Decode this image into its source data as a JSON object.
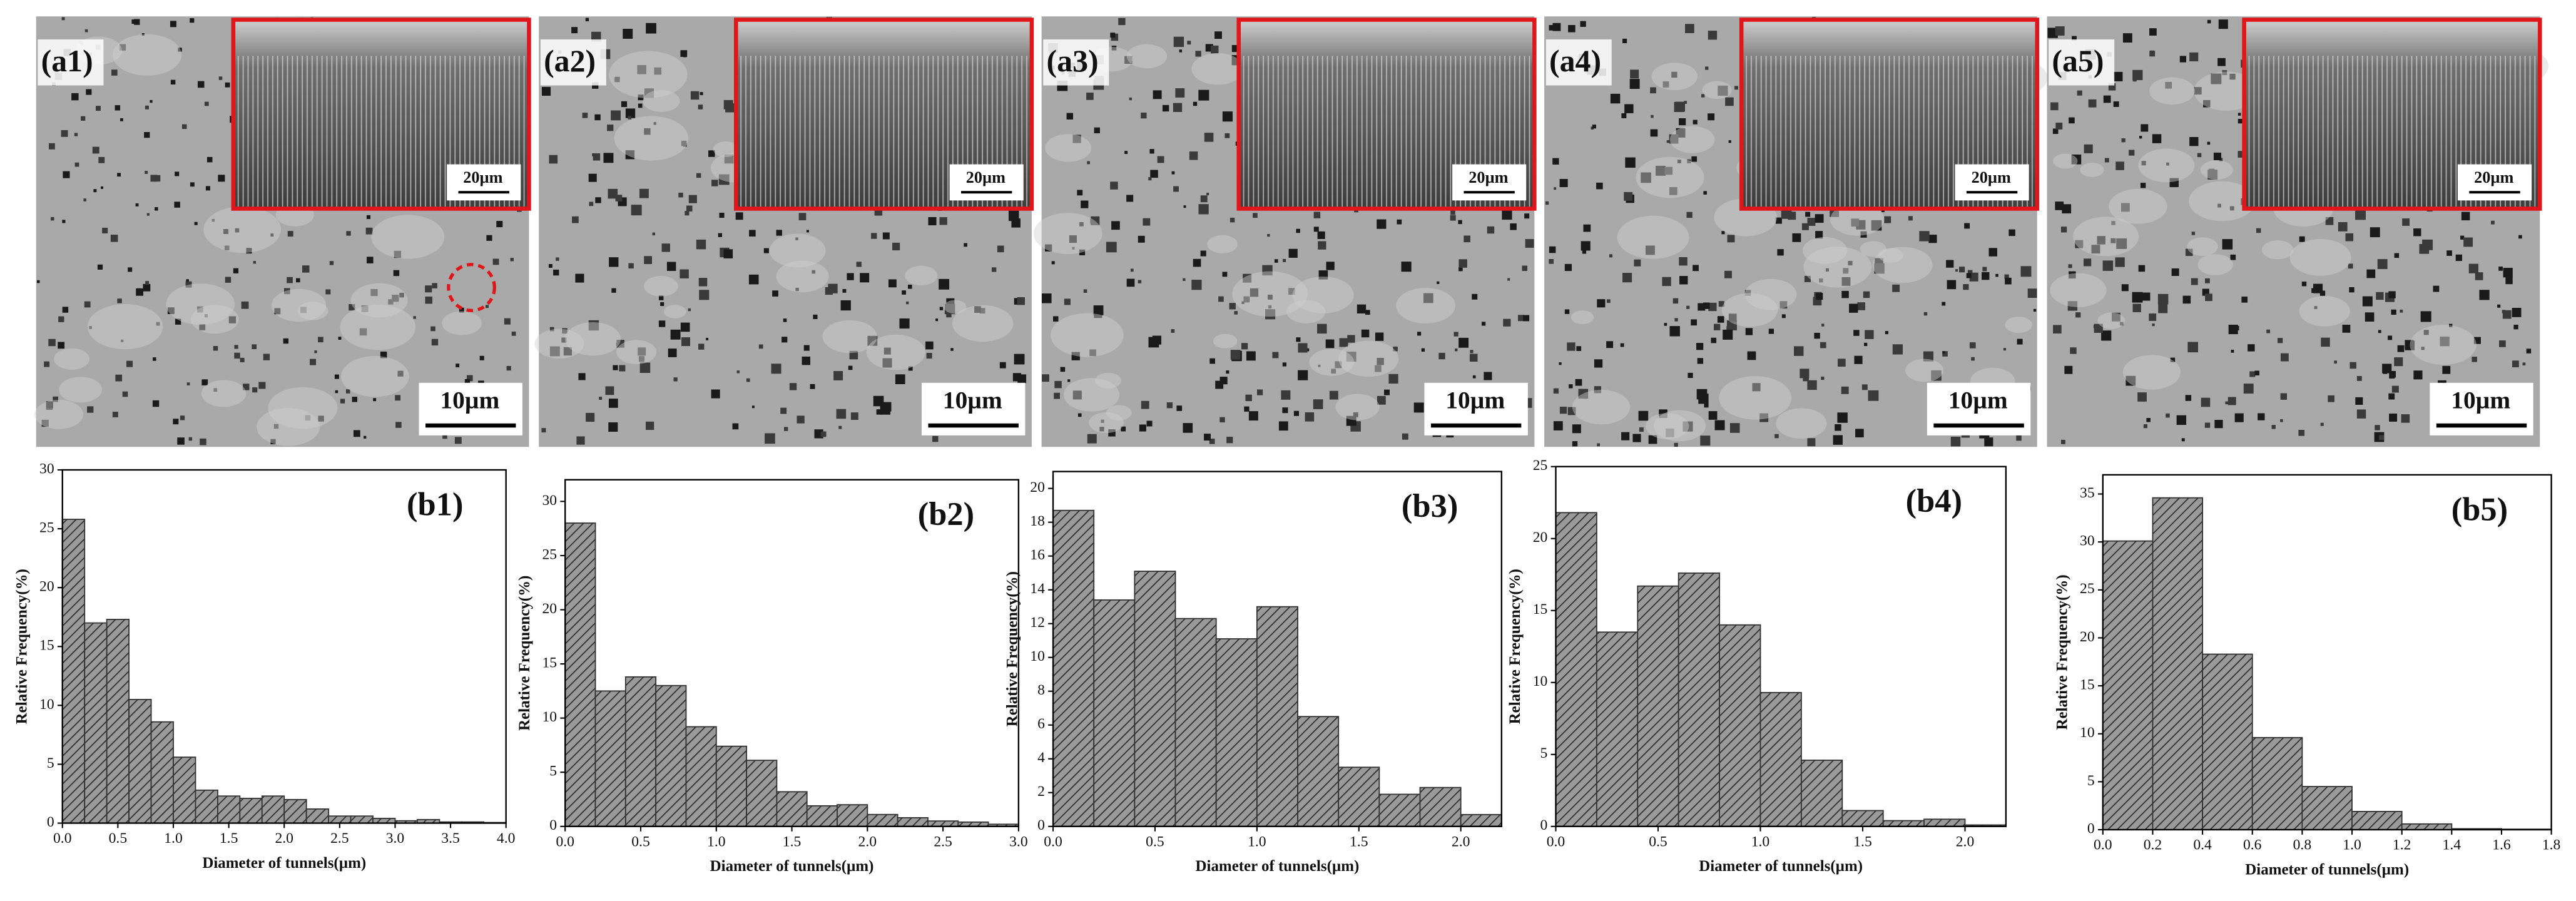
{
  "images": [
    {
      "label": "(a1)",
      "scale_bar": "10µm",
      "inset_scale_bar": "20µm"
    },
    {
      "label": "(a2)",
      "scale_bar": "10µm",
      "inset_scale_bar": "20µm"
    },
    {
      "label": "(a3)",
      "scale_bar": "10µm",
      "inset_scale_bar": "20µm"
    },
    {
      "label": "(a4)",
      "scale_bar": "10µm",
      "inset_scale_bar": "20µm"
    },
    {
      "label": "(a5)",
      "scale_bar": "10µm",
      "inset_scale_bar": "20µm"
    }
  ],
  "chart_data": [
    {
      "type": "histogram",
      "title": "(b1)",
      "xlabel": "Diameter of tunnels(µm)",
      "ylabel": "Relative Frequency(%)",
      "color": "#8c8c8c",
      "bins": [
        0,
        0.2,
        0.4,
        0.6,
        0.8,
        1.0,
        1.2,
        1.4,
        1.6,
        1.8,
        2.0,
        2.2,
        2.4,
        2.6,
        2.8,
        3.0,
        3.2,
        3.4,
        3.6,
        3.8,
        4.0
      ],
      "values": [
        25.8,
        17,
        17.3,
        10.5,
        8.6,
        5.6,
        2.8,
        2.3,
        2.1,
        2.3,
        2.0,
        1.2,
        0.6,
        0.6,
        0.4,
        0.2,
        0.3,
        0.1,
        0.1,
        0.05
      ],
      "xlim": [
        0,
        4.0
      ],
      "ylim": [
        0,
        30
      ],
      "xticks": [
        {
          "value": 0,
          "label": "0.0"
        },
        0.5,
        {
          "value": 1,
          "label": "1.0"
        },
        1.5,
        {
          "value": 2,
          "label": "2.0"
        },
        2.5,
        {
          "value": 3,
          "label": "3.0"
        },
        3.5,
        {
          "value": 4,
          "label": "4.0"
        }
      ],
      "yticks": [
        0,
        5,
        10,
        15,
        20,
        25,
        30
      ]
    },
    {
      "type": "histogram",
      "title": "(b2)",
      "xlabel": "Diameter of tunnels(µm)",
      "ylabel": "Relative Frequency(%)",
      "color": "#8c8c8c",
      "bins": [
        0,
        0.2,
        0.4,
        0.6,
        0.8,
        1.0,
        1.2,
        1.4,
        1.6,
        1.8,
        2.0,
        2.2,
        2.4,
        2.6,
        2.8,
        3.0
      ],
      "values": [
        28,
        12.5,
        13.8,
        13,
        9.2,
        7.4,
        6.1,
        3.2,
        1.9,
        2.0,
        1.1,
        0.8,
        0.5,
        0.4,
        0.2
      ],
      "xlim": [
        0,
        3.0
      ],
      "ylim": [
        0,
        32
      ],
      "xticks": [
        {
          "value": 0,
          "label": "0.0"
        },
        0.5,
        {
          "value": 1,
          "label": "1.0"
        },
        1.5,
        {
          "value": 2,
          "label": "2.0"
        },
        2.5,
        {
          "value": 3,
          "label": "3.0"
        }
      ],
      "yticks": [
        0,
        5,
        10,
        15,
        20,
        25,
        30
      ]
    },
    {
      "type": "histogram",
      "title": "(b3)",
      "xlabel": "Diameter of tunnels(µm)",
      "ylabel": "Relative Frequency(%)",
      "color": "#8c8c8c",
      "bins": [
        0,
        0.2,
        0.4,
        0.6,
        0.8,
        1.0,
        1.2,
        1.4,
        1.6,
        1.8,
        2.0,
        2.2
      ],
      "values": [
        18.7,
        13.4,
        15.1,
        12.3,
        11.1,
        13.0,
        6.5,
        3.5,
        1.9,
        2.3,
        0.7
      ],
      "xlim": [
        0,
        2.2
      ],
      "ylim": [
        0,
        21
      ],
      "xticks": [
        {
          "value": 0,
          "label": "0.0"
        },
        0.5,
        {
          "value": 1,
          "label": "1.0"
        },
        1.5,
        {
          "value": 2,
          "label": "2.0"
        }
      ],
      "yticks": [
        0,
        2,
        4,
        6,
        8,
        10,
        12,
        14,
        16,
        18,
        20
      ]
    },
    {
      "type": "histogram",
      "title": "(b4)",
      "xlabel": "Diameter of tunnels(µm)",
      "ylabel": "Relative Frequency(%)",
      "color": "#8c8c8c",
      "bins": [
        0,
        0.2,
        0.4,
        0.6,
        0.8,
        1.0,
        1.2,
        1.4,
        1.6,
        1.8,
        2.0,
        2.2
      ],
      "values": [
        21.8,
        13.5,
        16.7,
        17.6,
        14.0,
        9.3,
        4.6,
        1.1,
        0.4,
        0.5,
        0.1
      ],
      "xlim": [
        0,
        2.2
      ],
      "ylim": [
        0,
        25
      ],
      "xticks": [
        {
          "value": 0,
          "label": "0.0"
        },
        0.5,
        {
          "value": 1,
          "label": "1.0"
        },
        1.5,
        {
          "value": 2,
          "label": "2.0"
        }
      ],
      "yticks": [
        0,
        5,
        10,
        15,
        20,
        25
      ]
    },
    {
      "type": "histogram",
      "title": "(b5)",
      "xlabel": "Diameter of tunnels(µm)",
      "ylabel": "Relative Frequency(%)",
      "color": "#8c8c8c",
      "bins": [
        0,
        0.2,
        0.4,
        0.6,
        0.8,
        1.0,
        1.2,
        1.4,
        1.6,
        1.8
      ],
      "values": [
        30.1,
        34.6,
        18.3,
        9.6,
        4.5,
        1.9,
        0.6,
        0.1,
        0.05
      ],
      "xlim": [
        0,
        1.8
      ],
      "ylim": [
        0,
        37
      ],
      "xticks": [
        {
          "value": 0,
          "label": "0.0"
        },
        0.2,
        0.4,
        0.6,
        0.8,
        {
          "value": 1,
          "label": "1.0"
        },
        1.2,
        1.4,
        1.6,
        1.8
      ],
      "yticks": [
        0,
        5,
        10,
        15,
        20,
        25,
        30,
        35
      ]
    }
  ]
}
